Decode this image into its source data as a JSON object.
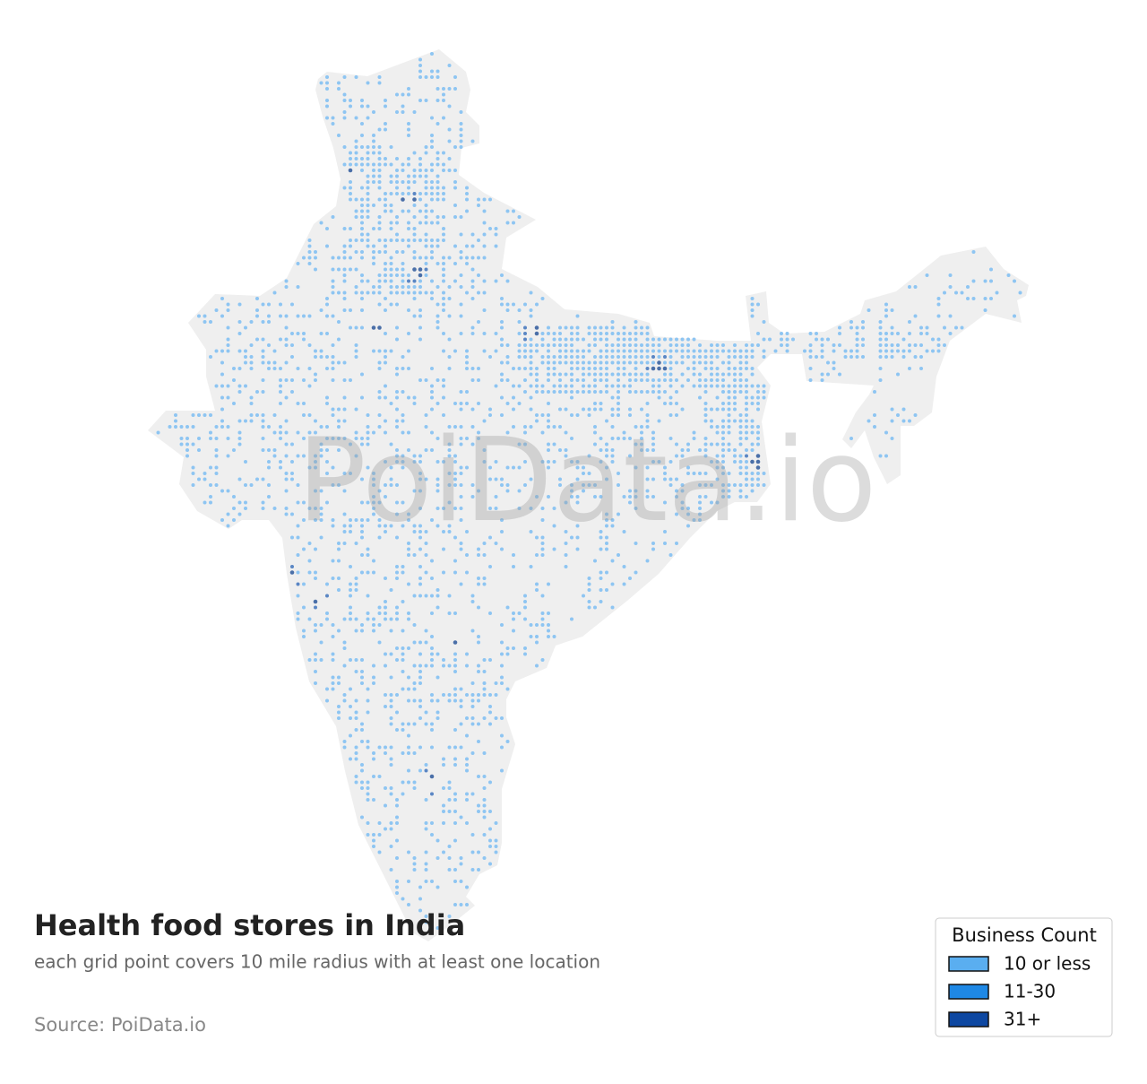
{
  "header": {
    "title": "Health food stores in India",
    "subtitle": "each grid point covers 10 mile radius with at least one location",
    "source": "Source: PoiData.io"
  },
  "watermark": "PoiData.io",
  "legend": {
    "title": "Business Count",
    "items": [
      {
        "label": "10 or less",
        "color": "#5aaef0"
      },
      {
        "label": "11-30",
        "color": "#1e88e5"
      },
      {
        "label": "31+",
        "color": "#0d47a1"
      }
    ]
  }
}
